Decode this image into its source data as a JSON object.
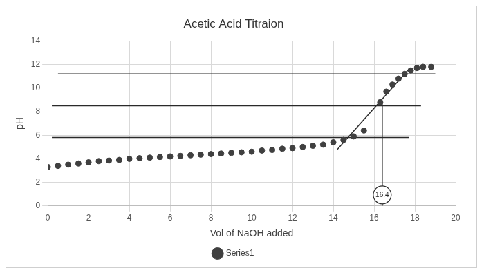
{
  "chart_data": {
    "type": "scatter",
    "title": "Acetic Acid Titraion",
    "x_label": "Vol of NaOH added",
    "y_label": "pH",
    "x": [
      0,
      0.5,
      1,
      1.5,
      2,
      2.5,
      3,
      3.5,
      4,
      4.5,
      5,
      5.5,
      6,
      6.5,
      7,
      7.5,
      8,
      8.5,
      9,
      9.5,
      10,
      10.5,
      11,
      11.5,
      12,
      12.5,
      13,
      13.5,
      14,
      14.5,
      15,
      15.5,
      16.3,
      16.6,
      16.9,
      17.2,
      17.5,
      17.8,
      18.1,
      18.4,
      18.8
    ],
    "series": [
      {
        "name": "Series1",
        "color": "#404040",
        "marker": "circle",
        "values": [
          3.3,
          3.4,
          3.5,
          3.6,
          3.7,
          3.8,
          3.85,
          3.9,
          4.0,
          4.05,
          4.1,
          4.15,
          4.2,
          4.25,
          4.3,
          4.35,
          4.4,
          4.45,
          4.5,
          4.55,
          4.6,
          4.7,
          4.75,
          4.85,
          4.9,
          5.0,
          5.1,
          5.2,
          5.4,
          5.6,
          5.9,
          6.4,
          8.8,
          9.7,
          10.3,
          10.8,
          11.2,
          11.5,
          11.7,
          11.8,
          11.8
        ]
      }
    ],
    "xlim": [
      0,
      20
    ],
    "xticks": [
      0,
      2,
      4,
      6,
      8,
      10,
      12,
      14,
      16,
      18,
      20
    ],
    "ylim": [
      0,
      14
    ],
    "yticks": [
      0,
      2,
      4,
      6,
      8,
      10,
      12,
      14
    ],
    "grid": true,
    "legend": "bottom",
    "reference_lines": [
      {
        "x": [
          0.5,
          19
        ],
        "y": [
          11.2,
          11.2
        ]
      },
      {
        "x": [
          0.2,
          18.3
        ],
        "y": [
          8.5,
          8.5
        ]
      },
      {
        "x": [
          0.2,
          17.7
        ],
        "y": [
          5.8,
          5.8
        ]
      },
      {
        "x": [
          14.2,
          17.7
        ],
        "y": [
          4.8,
          11.6
        ]
      },
      {
        "x": [
          16.4,
          16.4
        ],
        "y": [
          0,
          8.8
        ]
      }
    ],
    "annotations": [
      {
        "text": "16.4",
        "x": 16.4
      }
    ]
  }
}
